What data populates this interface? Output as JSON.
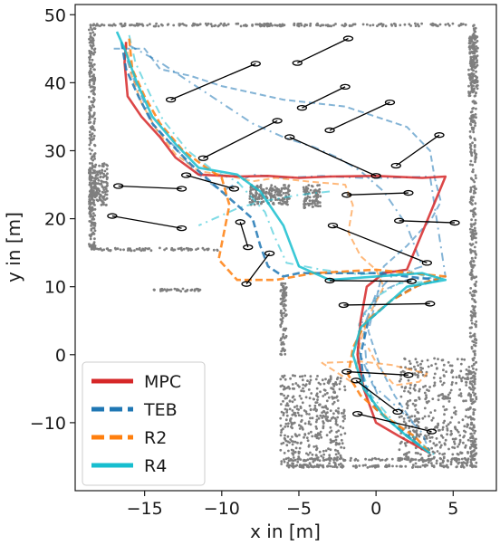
{
  "chart_data": {
    "type": "line",
    "title": "",
    "xlabel": "x in [m]",
    "ylabel": "y in [m]",
    "xlim": [
      -19.5,
      7.8
    ],
    "ylim": [
      -20,
      51.5
    ],
    "xticks": [
      -15,
      -10,
      -5,
      0,
      5
    ],
    "yticks": [
      -10,
      0,
      10,
      20,
      30,
      40,
      50
    ],
    "xtick_labels": [
      "−15",
      "−10",
      "−5",
      "0",
      "5"
    ],
    "ytick_labels": [
      "−10",
      "0",
      "10",
      "20",
      "30",
      "40",
      "50"
    ],
    "grid": false,
    "legend_position": "bottom-left",
    "legend": [
      {
        "name": "MPC",
        "color": "#d62728",
        "style": "solid"
      },
      {
        "name": "TEB",
        "color": "#1f77b4",
        "style": "dashed"
      },
      {
        "name": "R2",
        "color": "#ff7f0e",
        "style": "dashed"
      },
      {
        "name": "R4",
        "color": "#17becf",
        "style": "solid"
      }
    ],
    "series": [
      {
        "name": "MPC",
        "color": "#d62728",
        "x": [
          -16.2,
          -16.3,
          -16.1,
          -15.2,
          -14.0,
          -13.0,
          -11.5,
          -9.0,
          -7.0,
          -5.0,
          -3.0,
          0.0,
          3.0,
          4.5,
          2.0,
          0.5,
          -0.6,
          -1.0,
          -1.2,
          -0.8,
          0.0,
          1.5,
          3.5
        ],
        "y": [
          46.0,
          43.0,
          38.0,
          35.0,
          32.0,
          29.0,
          26.5,
          26.2,
          26.3,
          26.0,
          26.2,
          26.3,
          26.0,
          26.2,
          12.5,
          12.0,
          10.0,
          5.0,
          0.0,
          -5.0,
          -10.0,
          -12.0,
          -14.5
        ]
      },
      {
        "name": "TEB",
        "color": "#1f77b4",
        "x": [
          -16.5,
          -16.2,
          -15.4,
          -14.5,
          -13.3,
          -12.0,
          -10.0,
          -8.0,
          -7.5,
          -7.0,
          -6.0,
          -5.0,
          0.0,
          4.0,
          2.5,
          1.0,
          -0.5,
          -1.0,
          -0.8,
          0.0,
          1.5,
          3.5
        ],
        "y": [
          46.0,
          42.0,
          38.0,
          34.0,
          31.0,
          28.0,
          24.0,
          20.0,
          16.0,
          13.0,
          11.5,
          12.0,
          12.0,
          11.0,
          10.0,
          8.0,
          5.0,
          0.0,
          -4.0,
          -8.0,
          -11.0,
          -14.5
        ]
      },
      {
        "name": "R2",
        "color": "#ff7f0e",
        "x": [
          -16.0,
          -15.8,
          -15.0,
          -14.0,
          -12.5,
          -11.0,
          -10.0,
          -9.5,
          -10.2,
          -9.0,
          -6.5,
          -4.0,
          0.0,
          4.5,
          3.0,
          1.0,
          -0.6,
          -1.5,
          -1.8,
          -1.0,
          0.5,
          2.5,
          3.5
        ],
        "y": [
          46.5,
          42.0,
          38.0,
          34.0,
          30.0,
          27.5,
          26.0,
          22.0,
          14.0,
          11.0,
          11.0,
          12.0,
          12.5,
          11.5,
          10.5,
          8.0,
          5.0,
          1.0,
          -3.0,
          -6.0,
          -9.0,
          -12.0,
          -14.5
        ]
      },
      {
        "name": "R4",
        "color": "#17becf",
        "x": [
          -16.8,
          -16.3,
          -15.5,
          -14.5,
          -13.0,
          -11.5,
          -9.0,
          -7.5,
          -6.0,
          -5.0,
          -3.0,
          0.0,
          3.0,
          4.5,
          2.0,
          0.5,
          -1.0,
          -1.5,
          -0.8,
          0.5,
          2.0,
          3.5
        ],
        "y": [
          47.5,
          45.0,
          40.0,
          35.0,
          31.0,
          27.5,
          26.5,
          24.0,
          19.0,
          13.0,
          11.0,
          11.5,
          12.0,
          11.0,
          10.0,
          7.0,
          4.0,
          0.0,
          -5.0,
          -9.0,
          -12.0,
          -14.5
        ]
      }
    ],
    "alt_series": [
      {
        "color": "#1f77b4",
        "x": [
          -16.5,
          -15.8,
          -15.0,
          -14.4,
          -13.0,
          -11.8,
          -10.0,
          -8.0,
          -6.0,
          -3.5,
          -1.0,
          0.5,
          3.5,
          4.5,
          2.0,
          0.5,
          -0.8,
          -1.2,
          -0.2,
          1.5,
          3.0,
          3.5
        ],
        "y": [
          46.0,
          41.0,
          37.0,
          33.5,
          30.5,
          27.0,
          24.0,
          26.5,
          26.0,
          26.3,
          26.0,
          26.0,
          26.2,
          11.5,
          11.0,
          9.5,
          6.0,
          1.0,
          -4.5,
          -8.0,
          -11.5,
          -14.5
        ]
      },
      {
        "color": "#ff7f0e",
        "x": [
          -16.2,
          -15.9,
          -15.2,
          -14.2,
          -13.0,
          -11.5,
          -9.5,
          -8.0,
          -6.5,
          -4.5,
          -2.0,
          -1.5,
          -1.8,
          -1.0,
          0.0,
          0.5,
          -0.4,
          -1.0,
          -1.3,
          -0.5,
          1.0,
          2.5
        ],
        "y": [
          46.0,
          41.5,
          37.0,
          33.0,
          29.5,
          27.0,
          26.3,
          25.5,
          26.0,
          25.5,
          25.0,
          22.0,
          18.0,
          14.5,
          12.5,
          10.0,
          6.0,
          2.0,
          -2.0,
          -6.0,
          -10.0,
          -13.0
        ]
      },
      {
        "color": "#17becf",
        "x": [
          -16.0,
          -15.6,
          -14.7,
          -13.8,
          -12.2,
          -10.5,
          -9.0,
          -7.2,
          -6.6,
          -5.8,
          -3.5,
          -1.0,
          2.0,
          4.0,
          1.5,
          0.0,
          -1.1,
          -1.2,
          -0.3,
          1.0,
          2.7,
          3.8
        ],
        "y": [
          47.0,
          43.0,
          38.5,
          34.5,
          30.0,
          27.0,
          25.5,
          21.0,
          17.5,
          13.5,
          12.5,
          11.8,
          12.5,
          10.8,
          10.5,
          8.5,
          4.5,
          -1.0,
          -6.0,
          -9.5,
          -12.5,
          -14.8
        ]
      },
      {
        "color": "#1f77b4",
        "x": [
          -17.0,
          -15.0,
          -14.0,
          -12.0,
          -10.0,
          -8.0,
          -6.0,
          -4.0,
          -2.0,
          0.0,
          2.0,
          3.5,
          3.8,
          4.2,
          3.6,
          2.0,
          0.5,
          0.0,
          -0.5,
          0.3,
          1.2,
          2.4
        ],
        "y": [
          45.0,
          45.0,
          42.0,
          41.0,
          39.5,
          38.5,
          37.5,
          37.0,
          36.5,
          35.0,
          33.5,
          30.0,
          26.0,
          22.5,
          20.0,
          16.0,
          13.0,
          8.0,
          3.5,
          -2.0,
          -6.0,
          -10.0
        ]
      },
      {
        "color": "#1f77b4",
        "x": [
          -16.0,
          -14.0,
          -12.0,
          -10.0,
          -8.0,
          -6.0,
          -4.0,
          -2.5,
          -1.0,
          0.5,
          2.0,
          3.0,
          1.0,
          0.0,
          -0.8,
          -0.6,
          0.3
        ],
        "y": [
          45.5,
          43.0,
          40.0,
          37.0,
          34.0,
          32.0,
          30.5,
          29.0,
          27.0,
          24.0,
          19.0,
          13.0,
          11.5,
          9.0,
          4.0,
          -2.0,
          -7.0
        ]
      },
      {
        "color": "#ff7f0e",
        "x": [
          -1.6,
          -3.5,
          -1.0,
          1.0,
          3.3,
          2.8,
          1.2,
          0.2,
          -0.5
        ],
        "y": [
          -4.0,
          -1.2,
          -1.0,
          -1.5,
          -2.8,
          -4.0,
          -4.5,
          -2.0,
          1.0
        ]
      },
      {
        "color": "#17becf",
        "x": [
          -3.0,
          -5.0,
          -7.5,
          -9.0,
          -10.5,
          -11.5
        ],
        "y": [
          24.0,
          23.5,
          22.5,
          21.5,
          20.0,
          19.0
        ]
      }
    ],
    "obstacles": [
      {
        "x0": -17.1,
        "y0": 20.4,
        "x1": -12.6,
        "y1": 18.6
      },
      {
        "x0": -16.7,
        "y0": 24.8,
        "x1": -12.6,
        "y1": 24.4
      },
      {
        "x0": -12.3,
        "y0": 26.4,
        "x1": -9.2,
        "y1": 24.4
      },
      {
        "x0": -13.3,
        "y0": 37.5,
        "x1": -7.8,
        "y1": 42.8
      },
      {
        "x0": -11.2,
        "y0": 28.9,
        "x1": -6.4,
        "y1": 34.4
      },
      {
        "x0": -5.1,
        "y0": 42.9,
        "x1": -1.8,
        "y1": 46.5
      },
      {
        "x0": -4.8,
        "y0": 36.3,
        "x1": -2.0,
        "y1": 39.4
      },
      {
        "x0": -3.0,
        "y0": 33.0,
        "x1": 0.9,
        "y1": 37.1
      },
      {
        "x0": -5.6,
        "y0": 32.0,
        "x1": 0.0,
        "y1": 26.3
      },
      {
        "x0": 1.3,
        "y0": 27.8,
        "x1": 4.1,
        "y1": 32.3
      },
      {
        "x0": -1.9,
        "y0": 23.5,
        "x1": 2.1,
        "y1": 23.8
      },
      {
        "x0": 1.5,
        "y0": 19.7,
        "x1": 5.1,
        "y1": 19.4
      },
      {
        "x0": -2.8,
        "y0": 19.0,
        "x1": 3.3,
        "y1": 13.5
      },
      {
        "x0": -8.8,
        "y0": 19.5,
        "x1": -8.3,
        "y1": 15.8
      },
      {
        "x0": -8.4,
        "y0": 10.4,
        "x1": -6.9,
        "y1": 14.9
      },
      {
        "x0": -3.0,
        "y0": 10.9,
        "x1": 2.3,
        "y1": 10.8
      },
      {
        "x0": -2.1,
        "y0": 7.3,
        "x1": 3.5,
        "y1": 7.5
      },
      {
        "x0": -1.9,
        "y0": -2.5,
        "x1": 2.1,
        "y1": -3.0
      },
      {
        "x0": -1.3,
        "y0": -3.8,
        "x1": 1.4,
        "y1": -8.4
      },
      {
        "x0": -1.2,
        "y0": -8.7,
        "x1": 3.6,
        "y1": -11.3
      }
    ],
    "walls": [
      {
        "x0": -18.5,
        "x1": 6.5,
        "y0": 48.3,
        "y1": 48.7
      },
      {
        "x0": -18.6,
        "x1": -18.2,
        "y0": 15.5,
        "y1": 48.5
      },
      {
        "x0": -18.6,
        "x1": -17.4,
        "y0": 22.0,
        "y1": 28.2
      },
      {
        "x0": 6.1,
        "x1": 6.5,
        "y0": -16.5,
        "y1": 48.5
      },
      {
        "x0": 6.0,
        "x1": 6.6,
        "y0": 38.0,
        "y1": 47.0
      },
      {
        "x0": -18.5,
        "x1": -10.0,
        "y0": 15.3,
        "y1": 15.7
      },
      {
        "x0": -14.5,
        "x1": -11.0,
        "y0": 9.3,
        "y1": 9.7
      },
      {
        "x0": -8.2,
        "x1": -5.6,
        "y0": 22.0,
        "y1": 25.0
      },
      {
        "x0": -4.7,
        "x1": -3.6,
        "y0": 21.5,
        "y1": 25.0
      },
      {
        "x0": -6.2,
        "x1": -5.8,
        "y0": 0.0,
        "y1": 10.5
      },
      {
        "x0": -6.2,
        "x1": -2.0,
        "y0": -16.6,
        "y1": -3.0
      },
      {
        "x0": 1.5,
        "x1": 6.4,
        "y0": -16.6,
        "y1": -0.5
      },
      {
        "x0": -6.0,
        "x1": 6.5,
        "y0": -16.6,
        "y1": -16.2
      },
      {
        "x0": -6.0,
        "x1": 6.5,
        "y0": -15.6,
        "y1": -15.2
      }
    ]
  }
}
